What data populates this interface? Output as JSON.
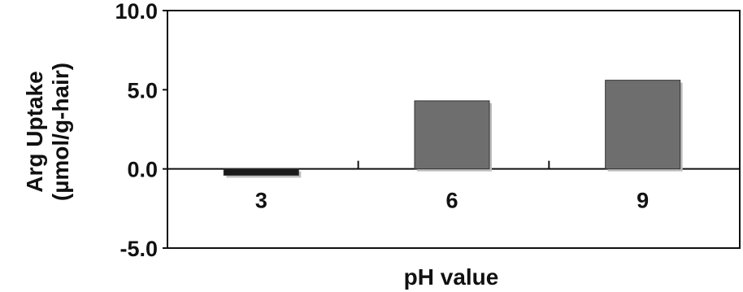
{
  "chart_data": {
    "type": "bar",
    "categories": [
      "3",
      "6",
      "9"
    ],
    "values": [
      -0.4,
      4.3,
      5.6
    ],
    "xlabel": "pH value",
    "ylabel": [
      "Arg Uptake",
      "(µmol/g-hair)"
    ],
    "ylim": [
      -5.0,
      10.0
    ],
    "yticks": [
      "10.0",
      "5.0",
      "0.0",
      "-5.0"
    ],
    "grid": false,
    "legend": "none",
    "colors": {
      "positive_bar": "#6e6e6e",
      "negative_bar": "#1a1a1a",
      "axis": "#111111"
    }
  }
}
